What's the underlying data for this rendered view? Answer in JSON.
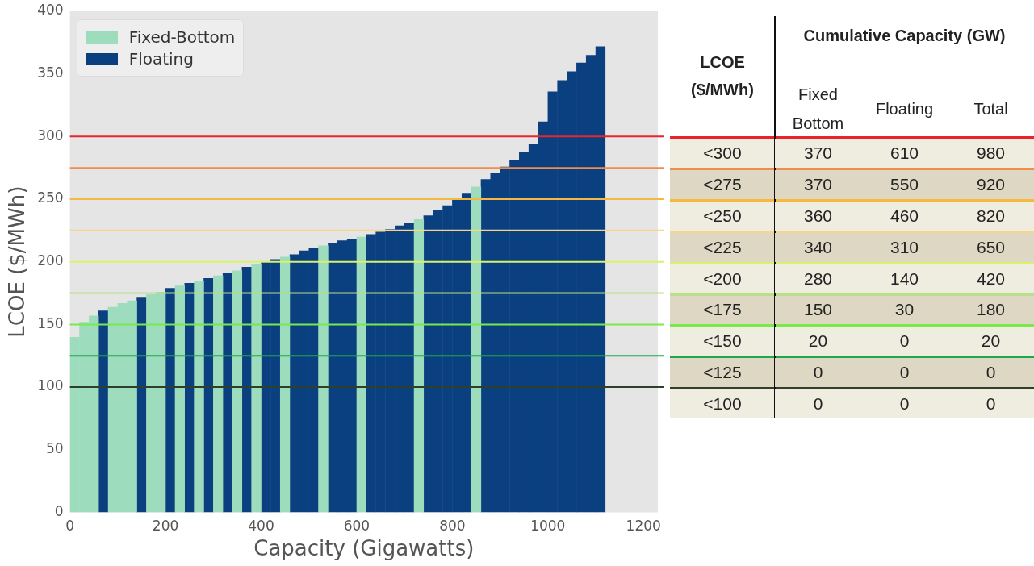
{
  "chart_data": [
    {
      "type": "bar",
      "xlabel": "Capacity (Gigawatts)",
      "ylabel": "LCOE ($/MWh)",
      "xlim": [
        0,
        1230
      ],
      "xticks": [
        0,
        200,
        400,
        600,
        800,
        1000,
        1200
      ],
      "ylim": [
        0,
        400
      ],
      "yticks": [
        0,
        50,
        100,
        150,
        200,
        250,
        300,
        350,
        400
      ],
      "grid": false,
      "legend": "top left",
      "series": [
        {
          "name": "Fixed-Bottom",
          "color": "#9ddcbd",
          "x": [
            10,
            30,
            50,
            90,
            110,
            130,
            170,
            190,
            230,
            270,
            310,
            350,
            390,
            450,
            530,
            610,
            730,
            850
          ],
          "values": [
            140,
            152,
            157,
            164,
            167,
            169,
            174,
            176,
            181,
            185,
            189,
            193,
            198,
            204,
            213,
            220,
            234,
            260
          ]
        },
        {
          "name": "Floating",
          "color": "#0a3f80",
          "x": [
            70,
            150,
            210,
            250,
            290,
            330,
            370,
            410,
            430,
            470,
            490,
            510,
            550,
            570,
            590,
            630,
            650,
            670,
            690,
            710,
            750,
            770,
            790,
            810,
            830,
            870,
            890,
            910,
            930,
            950,
            970,
            990,
            1010,
            1030,
            1050,
            1070,
            1090,
            1110
          ],
          "values": [
            161,
            172,
            179,
            183,
            187,
            191,
            196,
            200,
            202,
            206,
            209,
            211,
            215,
            217,
            218,
            222,
            224,
            226,
            229,
            231,
            237,
            241,
            245,
            250,
            255,
            266,
            271,
            276,
            281,
            288,
            294,
            312,
            336,
            345,
            352,
            359,
            365,
            372
          ]
        }
      ],
      "ref_lines": [
        {
          "axis": "y",
          "value": 300,
          "color": "#e8262a"
        },
        {
          "axis": "y",
          "value": 275,
          "color": "#f28c4a"
        },
        {
          "axis": "y",
          "value": 250,
          "color": "#f5b942"
        },
        {
          "axis": "y",
          "value": 225,
          "color": "#f7d58a"
        },
        {
          "axis": "y",
          "value": 200,
          "color": "#d9f26a"
        },
        {
          "axis": "y",
          "value": 175,
          "color": "#b6e08a"
        },
        {
          "axis": "y",
          "value": 150,
          "color": "#79ea4a"
        },
        {
          "axis": "y",
          "value": 125,
          "color": "#1fa850"
        },
        {
          "axis": "y",
          "value": 100,
          "color": "#2e3f2a"
        }
      ]
    },
    {
      "type": "other",
      "title": "Cumulative Capacity (GW)",
      "ylabel": "LCOE ($/MWh)",
      "data_labels": true,
      "categories": [
        "<300",
        "<275",
        "<250",
        "<225",
        "<200",
        "<175",
        "<150",
        "<125",
        "<100"
      ],
      "series": [
        {
          "name": "Fixed Bottom",
          "colors": [
            "#efece0",
            "#ddd7c3",
            "#efece0",
            "#ddd7c3",
            "#efece0",
            "#ddd7c3",
            "#efece0",
            "#ddd7c3",
            "#efece0"
          ],
          "values": [
            370,
            370,
            360,
            340,
            280,
            150,
            20,
            0,
            0
          ]
        },
        {
          "name": "Floating",
          "colors": [
            "#efece0",
            "#ddd7c3",
            "#efece0",
            "#ddd7c3",
            "#efece0",
            "#ddd7c3",
            "#efece0",
            "#ddd7c3",
            "#efece0"
          ],
          "values": [
            610,
            550,
            460,
            310,
            140,
            30,
            0,
            0,
            0
          ]
        },
        {
          "name": "Total",
          "colors": [
            "#efece0",
            "#ddd7c3",
            "#efece0",
            "#ddd7c3",
            "#efece0",
            "#ddd7c3",
            "#efece0",
            "#ddd7c3",
            "#efece0"
          ],
          "values": [
            980,
            920,
            820,
            650,
            420,
            180,
            20,
            0,
            0
          ]
        }
      ]
    }
  ]
}
